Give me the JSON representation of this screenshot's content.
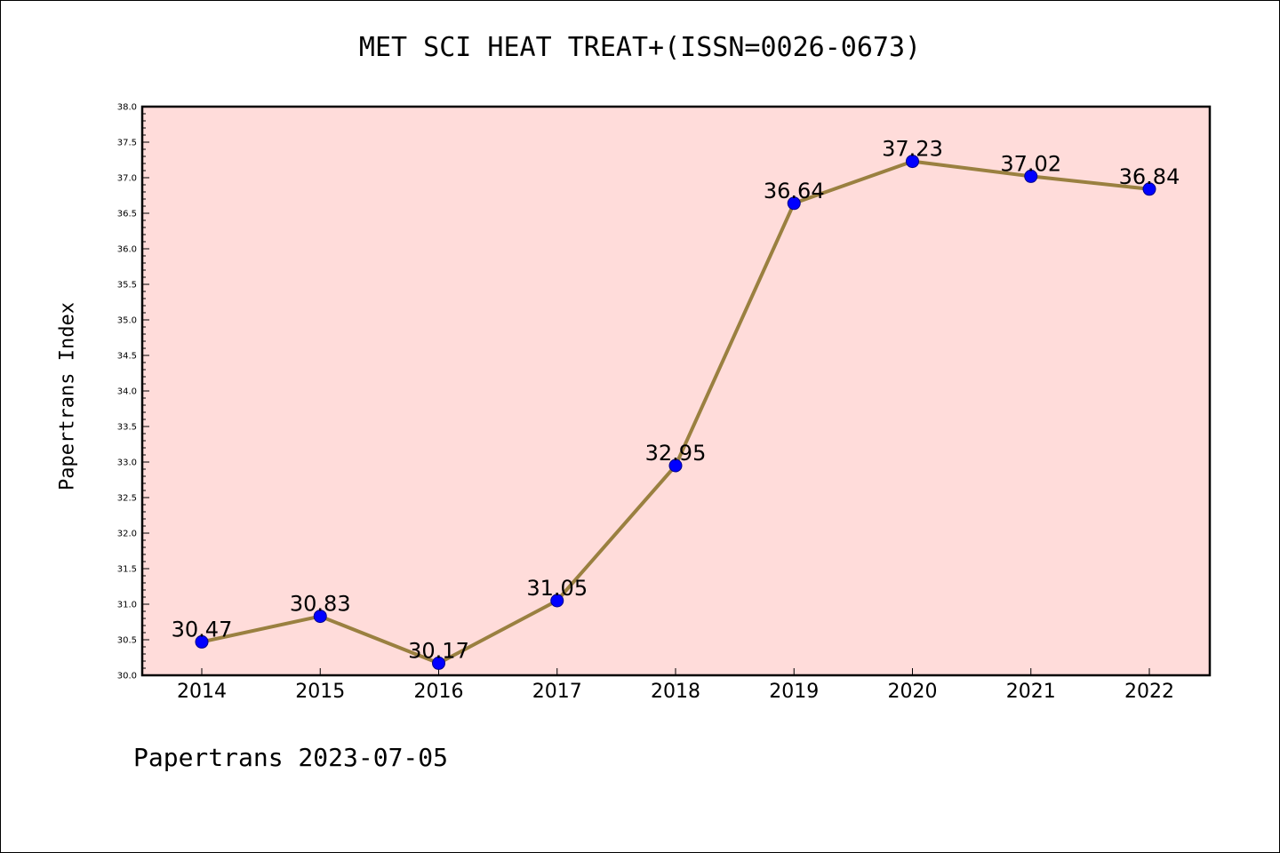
{
  "title": "MET SCI HEAT TREAT+(ISSN=0026-0673)",
  "footer": "Papertrans 2023-07-05",
  "colors": {
    "plot_background": "#FFDCDA",
    "line": "#9A8040",
    "marker_fill": "#0000FF",
    "marker_edge": "#00008B"
  },
  "chart_data": {
    "type": "line",
    "title": "MET SCI HEAT TREAT+(ISSN=0026-0673)",
    "xlabel": "",
    "ylabel": "Papertrans Index",
    "categories": [
      "2014",
      "2015",
      "2016",
      "2017",
      "2018",
      "2019",
      "2020",
      "2021",
      "2022"
    ],
    "series": [
      {
        "values": [
          30.47,
          30.83,
          30.17,
          31.05,
          32.95,
          36.64,
          37.23,
          37.02,
          36.84
        ],
        "labels": [
          "30.47",
          "30.83",
          "30.17",
          "31.05",
          "32.95",
          "36.64",
          "37.23",
          "37.02",
          "36.84"
        ]
      }
    ],
    "ylim": [
      30.0,
      38.0
    ],
    "yticks": [
      "30.0",
      "30.5",
      "31.0",
      "31.5",
      "32.0",
      "32.5",
      "33.0",
      "33.5",
      "34.0",
      "34.5",
      "35.0",
      "35.5",
      "36.0",
      "36.5",
      "37.0",
      "37.5",
      "38.0"
    ],
    "grid": false,
    "legend": "none"
  }
}
